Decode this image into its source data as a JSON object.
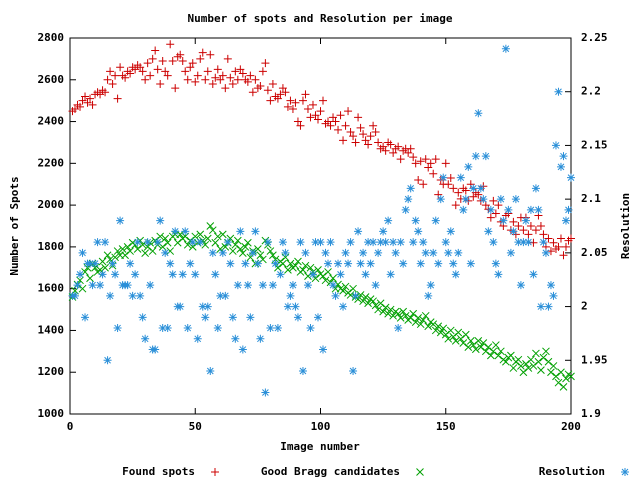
{
  "chart_data": {
    "type": "scatter",
    "title": "Number of spots and Resolution per image",
    "x_label": "Image number",
    "y_label": "Number of Spots",
    "y2_label": "Resolution",
    "xlim": [
      0,
      200
    ],
    "xticks": [
      0,
      50,
      100,
      150,
      200
    ],
    "ylim": [
      1000,
      2800
    ],
    "yticks": [
      1000,
      1200,
      1400,
      1600,
      1800,
      2000,
      2200,
      2400,
      2600,
      2800
    ],
    "y2lim": [
      1.9,
      2.25
    ],
    "y2ticks": [
      1.9,
      1.95,
      2,
      2.05,
      2.1,
      2.15,
      2.2,
      2.25
    ],
    "grid": false,
    "legend": "bottom",
    "x": [
      1,
      2,
      3,
      4,
      5,
      6,
      7,
      8,
      9,
      10,
      11,
      12,
      13,
      14,
      15,
      16,
      17,
      18,
      19,
      20,
      21,
      22,
      23,
      24,
      25,
      26,
      27,
      28,
      29,
      30,
      31,
      32,
      33,
      34,
      35,
      36,
      37,
      38,
      39,
      40,
      41,
      42,
      43,
      44,
      45,
      46,
      47,
      48,
      49,
      50,
      51,
      52,
      53,
      54,
      55,
      56,
      57,
      58,
      59,
      60,
      61,
      62,
      63,
      64,
      65,
      66,
      67,
      68,
      69,
      70,
      71,
      72,
      73,
      74,
      75,
      76,
      77,
      78,
      79,
      80,
      81,
      82,
      83,
      84,
      85,
      86,
      87,
      88,
      89,
      90,
      91,
      92,
      93,
      94,
      95,
      96,
      97,
      98,
      99,
      100,
      101,
      102,
      103,
      104,
      105,
      106,
      107,
      108,
      109,
      110,
      111,
      112,
      113,
      114,
      115,
      116,
      117,
      118,
      119,
      120,
      121,
      122,
      123,
      124,
      125,
      126,
      127,
      128,
      129,
      130,
      131,
      132,
      133,
      134,
      135,
      136,
      137,
      138,
      139,
      140,
      141,
      142,
      143,
      144,
      145,
      146,
      147,
      148,
      149,
      150,
      151,
      152,
      153,
      154,
      155,
      156,
      157,
      158,
      159,
      160,
      161,
      162,
      163,
      164,
      165,
      166,
      167,
      168,
      169,
      170,
      171,
      172,
      173,
      174,
      175,
      176,
      177,
      178,
      179,
      180,
      181,
      182,
      183,
      184,
      185,
      186,
      187,
      188,
      189,
      190,
      191,
      192,
      193,
      194,
      195,
      196,
      197,
      198,
      199,
      200
    ],
    "series": [
      {
        "name": "Found spots",
        "color": "#cc0000",
        "marker": "plus",
        "values": [
          2450,
          2460,
          2480,
          2470,
          2500,
          2520,
          2490,
          2510,
          2480,
          2530,
          2540,
          2530,
          2550,
          2540,
          2600,
          2640,
          2580,
          2620,
          2510,
          2660,
          2620,
          2610,
          2640,
          2630,
          2660,
          2650,
          2670,
          2660,
          2640,
          2600,
          2680,
          2620,
          2700,
          2740,
          2650,
          2580,
          2690,
          2640,
          2620,
          2770,
          2690,
          2560,
          2710,
          2720,
          2690,
          2640,
          2600,
          2660,
          2680,
          2590,
          2620,
          2700,
          2730,
          2600,
          2640,
          2720,
          2580,
          2610,
          2650,
          2600,
          2620,
          2560,
          2700,
          2610,
          2580,
          2640,
          2600,
          2650,
          2630,
          2600,
          2590,
          2620,
          2540,
          2600,
          2560,
          2570,
          2640,
          2680,
          2550,
          2500,
          2580,
          2520,
          2510,
          2530,
          2560,
          2540,
          2470,
          2500,
          2460,
          2490,
          2400,
          2380,
          2500,
          2530,
          2460,
          2420,
          2480,
          2430,
          2410,
          2450,
          2500,
          2390,
          2400,
          2380,
          2420,
          2400,
          2360,
          2430,
          2310,
          2380,
          2450,
          2350,
          2330,
          2300,
          2420,
          2370,
          2340,
          2310,
          2290,
          2330,
          2380,
          2350,
          2300,
          2270,
          2280,
          2260,
          2300,
          2290,
          2250,
          2270,
          2280,
          2220,
          2260,
          2270,
          2250,
          2270,
          2230,
          2200,
          2120,
          2210,
          2100,
          2220,
          2180,
          2200,
          2150,
          2220,
          2050,
          2120,
          2100,
          2200,
          2100,
          2130,
          2080,
          2000,
          2060,
          2030,
          2080,
          2070,
          2020,
          2100,
          2040,
          2060,
          2050,
          2020,
          2090,
          2000,
          1980,
          1940,
          2020,
          1960,
          2000,
          1920,
          1900,
          1950,
          1960,
          1880,
          1920,
          1860,
          1900,
          1940,
          1880,
          1940,
          1860,
          1900,
          1820,
          1880,
          1950,
          1900,
          1860,
          1800,
          1840,
          1780,
          1820,
          1790,
          1800,
          1840,
          1760,
          1800,
          1830,
          1840
        ]
      },
      {
        "name": "Good Bragg candidates",
        "color": "#00a000",
        "marker": "cross",
        "values": [
          1560,
          1590,
          1620,
          1640,
          1600,
          1680,
          1700,
          1650,
          1720,
          1700,
          1680,
          1690,
          1730,
          1700,
          1760,
          1740,
          1710,
          1750,
          1780,
          1760,
          1790,
          1760,
          1800,
          1780,
          1820,
          1810,
          1790,
          1830,
          1810,
          1770,
          1800,
          1820,
          1780,
          1830,
          1810,
          1850,
          1800,
          1840,
          1820,
          1780,
          1850,
          1860,
          1820,
          1860,
          1840,
          1850,
          1810,
          1830,
          1800,
          1850,
          1820,
          1860,
          1830,
          1810,
          1840,
          1900,
          1880,
          1820,
          1850,
          1790,
          1860,
          1800,
          1820,
          1840,
          1780,
          1810,
          1830,
          1790,
          1770,
          1800,
          1820,
          1750,
          1780,
          1720,
          1790,
          1760,
          1740,
          1830,
          1810,
          1780,
          1760,
          1740,
          1700,
          1730,
          1720,
          1750,
          1690,
          1720,
          1700,
          1710,
          1730,
          1680,
          1690,
          1710,
          1660,
          1700,
          1680,
          1650,
          1690,
          1670,
          1660,
          1640,
          1680,
          1630,
          1650,
          1600,
          1620,
          1600,
          1590,
          1610,
          1580,
          1570,
          1600,
          1560,
          1550,
          1570,
          1540,
          1560,
          1530,
          1550,
          1540,
          1520,
          1500,
          1530,
          1490,
          1510,
          1480,
          1500,
          1470,
          1490,
          1480,
          1460,
          1490,
          1470,
          1450,
          1460,
          1480,
          1440,
          1460,
          1430,
          1450,
          1470,
          1420,
          1440,
          1430,
          1400,
          1420,
          1390,
          1410,
          1380,
          1360,
          1400,
          1370,
          1350,
          1390,
          1360,
          1340,
          1380,
          1320,
          1350,
          1330,
          1310,
          1350,
          1320,
          1340,
          1300,
          1320,
          1280,
          1300,
          1330,
          1280,
          1300,
          1260,
          1250,
          1270,
          1280,
          1220,
          1250,
          1260,
          1230,
          1200,
          1240,
          1220,
          1260,
          1230,
          1290,
          1250,
          1210,
          1270,
          1300,
          1250,
          1200,
          1230,
          1180,
          1150,
          1200,
          1130,
          1170,
          1190,
          1180
        ]
      },
      {
        "name": "Resolution",
        "color": "#2a8fd8",
        "marker": "star",
        "axis": "y2",
        "values": [
          2.01,
          2.01,
          2.02,
          2.03,
          2.05,
          1.99,
          2.04,
          2.04,
          2.02,
          2.04,
          2.06,
          2.02,
          2.03,
          2.06,
          1.95,
          2.01,
          2.04,
          2.03,
          1.98,
          2.08,
          2.02,
          2.02,
          2.02,
          2.04,
          2.01,
          2.03,
          2.06,
          2.01,
          1.99,
          1.97,
          2.06,
          2.02,
          1.96,
          1.96,
          2.06,
          2.08,
          1.98,
          2.05,
          1.98,
          2.04,
          2.03,
          2.07,
          2.0,
          2.0,
          2.03,
          2.07,
          1.98,
          2.04,
          2.06,
          2.03,
          1.97,
          2.06,
          2.0,
          1.99,
          2.0,
          1.94,
          2.05,
          2.03,
          1.98,
          2.01,
          2.05,
          2.01,
          2.06,
          2.04,
          1.99,
          1.97,
          2.02,
          2.07,
          1.96,
          2.04,
          2.02,
          1.99,
          2.05,
          2.07,
          2.04,
          1.97,
          2.02,
          1.92,
          2.06,
          1.98,
          2.02,
          2.04,
          1.98,
          2.03,
          2.06,
          2.05,
          2.0,
          2.01,
          2.02,
          2.0,
          1.99,
          2.06,
          1.94,
          2.05,
          2.02,
          1.98,
          2.03,
          2.06,
          1.99,
          2.06,
          1.96,
          2.05,
          2.04,
          2.06,
          2.02,
          2.01,
          2.04,
          2.03,
          2.0,
          2.05,
          2.04,
          2.06,
          1.94,
          2.01,
          2.07,
          2.04,
          2.05,
          2.03,
          2.06,
          2.04,
          2.06,
          2.02,
          2.05,
          2.06,
          2.07,
          2.06,
          2.08,
          2.03,
          2.06,
          2.05,
          1.98,
          2.06,
          2.04,
          2.09,
          2.1,
          2.11,
          2.06,
          2.08,
          2.07,
          2.04,
          2.06,
          2.05,
          2.01,
          2.02,
          2.05,
          2.08,
          2.04,
          2.1,
          2.12,
          2.06,
          2.05,
          2.07,
          2.04,
          2.03,
          2.05,
          2.12,
          2.09,
          2.1,
          2.13,
          2.04,
          2.11,
          2.14,
          2.18,
          2.11,
          2.1,
          2.14,
          2.07,
          2.09,
          2.06,
          2.04,
          2.03,
          2.1,
          2.08,
          2.24,
          2.09,
          2.05,
          2.07,
          2.1,
          2.06,
          2.02,
          2.06,
          2.08,
          2.06,
          2.09,
          2.03,
          2.11,
          2.09,
          2.0,
          2.06,
          2.05,
          2.0,
          2.02,
          2.01,
          2.15,
          2.2,
          2.13,
          2.14,
          2.08,
          2.09,
          2.12
        ]
      }
    ]
  }
}
